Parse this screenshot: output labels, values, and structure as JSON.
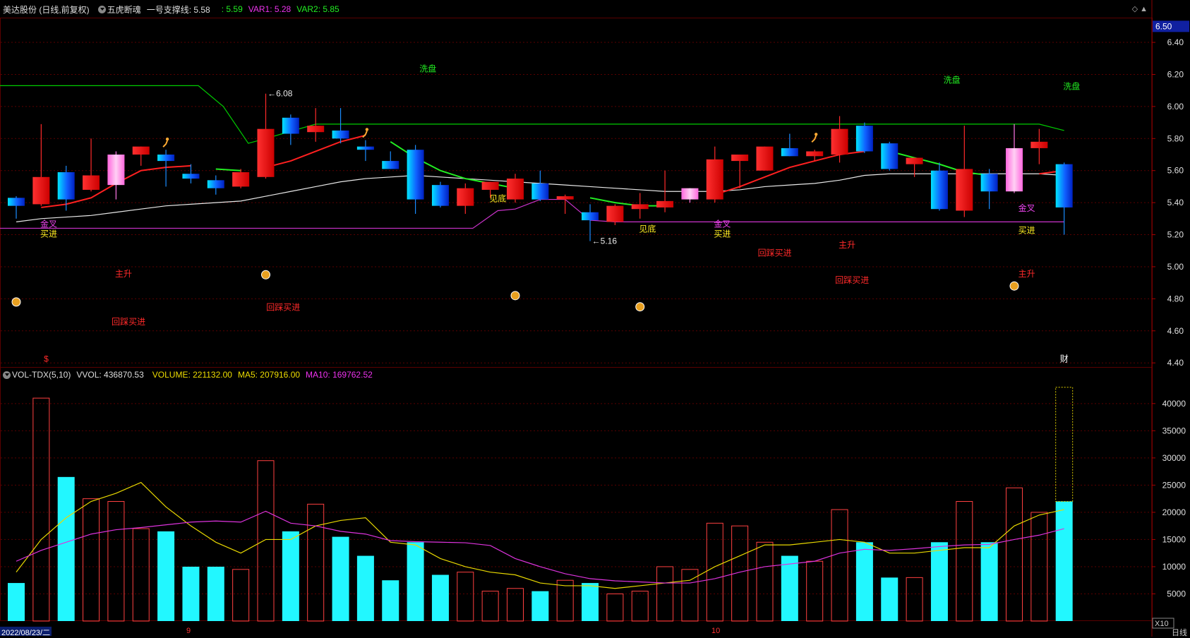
{
  "header": {
    "stock": "美达股份 (日线,前复权)",
    "indicator": "五虎断魂",
    "support_label": "一号支撑线: 5.58",
    "val1": ": 5.59",
    "var1": "VAR1: 5.28",
    "var2": "VAR2: 5.85",
    "icons": "◇ ▲"
  },
  "volume_header": {
    "indicator": "VOL-TDX(5,10)",
    "vvol": "VVOL: 436870.53",
    "volume": "VOLUME: 221132.00",
    "ma5": "MA5: 207916.00",
    "ma10": "MA10: 169762.52"
  },
  "footer": {
    "date": "2022/08/23/二",
    "month_9": "9",
    "month_10": "10",
    "period": "日线",
    "multiplier": "X10"
  },
  "colors": {
    "up": "#ff1a1a",
    "down_cyan": "#00e5ff",
    "down_blue": "#0044ff",
    "pink": "#ff77e6",
    "green": "#00dd00",
    "magenta": "#dd33dd",
    "yellow": "#ffee00",
    "grid": "#5a0000"
  },
  "chart_data": {
    "type": "candlestick",
    "price_axis": {
      "ylim": [
        4.37,
        6.55
      ],
      "ticks": [
        "4.40",
        "4.60",
        "4.80",
        "5.00",
        "5.20",
        "5.40",
        "5.60",
        "5.80",
        "6.00",
        "6.20",
        "6.40"
      ],
      "current": "6.50"
    },
    "volume_axis": {
      "ylim": [
        0,
        44000
      ],
      "ticks": [
        "5000",
        "10000",
        "15000",
        "20000",
        "25000",
        "30000",
        "35000",
        "40000"
      ]
    },
    "candles": [
      {
        "o": 5.38,
        "h": 5.44,
        "l": 5.3,
        "c": 5.43,
        "t": "down"
      },
      {
        "o": 5.39,
        "h": 5.89,
        "l": 5.38,
        "c": 5.56,
        "t": "up"
      },
      {
        "o": 5.59,
        "h": 5.63,
        "l": 5.35,
        "c": 5.42,
        "t": "down"
      },
      {
        "o": 5.48,
        "h": 5.8,
        "l": 5.47,
        "c": 5.57,
        "t": "up"
      },
      {
        "o": 5.51,
        "h": 5.72,
        "l": 5.42,
        "c": 5.7,
        "t": "pink"
      },
      {
        "o": 5.7,
        "h": 5.75,
        "l": 5.63,
        "c": 5.75,
        "t": "up"
      },
      {
        "o": 5.7,
        "h": 5.73,
        "l": 5.5,
        "c": 5.66,
        "t": "down"
      },
      {
        "o": 5.58,
        "h": 5.64,
        "l": 5.52,
        "c": 5.55,
        "t": "down"
      },
      {
        "o": 5.54,
        "h": 5.57,
        "l": 5.45,
        "c": 5.49,
        "t": "down"
      },
      {
        "o": 5.5,
        "h": 5.61,
        "l": 5.49,
        "c": 5.59,
        "t": "up"
      },
      {
        "o": 5.56,
        "h": 6.08,
        "l": 5.55,
        "c": 5.86,
        "t": "up"
      },
      {
        "o": 5.93,
        "h": 5.95,
        "l": 5.76,
        "c": 5.83,
        "t": "down"
      },
      {
        "o": 5.84,
        "h": 5.99,
        "l": 5.78,
        "c": 5.88,
        "t": "up"
      },
      {
        "o": 5.85,
        "h": 5.99,
        "l": 5.77,
        "c": 5.8,
        "t": "down"
      },
      {
        "o": 5.75,
        "h": 5.79,
        "l": 5.66,
        "c": 5.73,
        "t": "down"
      },
      {
        "o": 5.66,
        "h": 5.72,
        "l": 5.61,
        "c": 5.61,
        "t": "down"
      },
      {
        "o": 5.73,
        "h": 5.76,
        "l": 5.33,
        "c": 5.42,
        "t": "down"
      },
      {
        "o": 5.51,
        "h": 5.53,
        "l": 5.37,
        "c": 5.38,
        "t": "down"
      },
      {
        "o": 5.38,
        "h": 5.52,
        "l": 5.33,
        "c": 5.49,
        "t": "up"
      },
      {
        "o": 5.48,
        "h": 5.53,
        "l": 5.43,
        "c": 5.53,
        "t": "up"
      },
      {
        "o": 5.42,
        "h": 5.58,
        "l": 5.4,
        "c": 5.55,
        "t": "up"
      },
      {
        "o": 5.52,
        "h": 5.6,
        "l": 5.41,
        "c": 5.42,
        "t": "down"
      },
      {
        "o": 5.42,
        "h": 5.45,
        "l": 5.33,
        "c": 5.44,
        "t": "up"
      },
      {
        "o": 5.34,
        "h": 5.39,
        "l": 5.16,
        "c": 5.29,
        "t": "down"
      },
      {
        "o": 5.28,
        "h": 5.39,
        "l": 5.26,
        "c": 5.38,
        "t": "up"
      },
      {
        "o": 5.36,
        "h": 5.46,
        "l": 5.3,
        "c": 5.39,
        "t": "up"
      },
      {
        "o": 5.37,
        "h": 5.6,
        "l": 5.34,
        "c": 5.41,
        "t": "up"
      },
      {
        "o": 5.42,
        "h": 5.49,
        "l": 5.4,
        "c": 5.49,
        "t": "pink"
      },
      {
        "o": 5.42,
        "h": 5.75,
        "l": 5.4,
        "c": 5.67,
        "t": "up"
      },
      {
        "o": 5.66,
        "h": 5.7,
        "l": 5.49,
        "c": 5.7,
        "t": "up"
      },
      {
        "o": 5.6,
        "h": 5.75,
        "l": 5.6,
        "c": 5.75,
        "t": "up"
      },
      {
        "o": 5.74,
        "h": 5.83,
        "l": 5.69,
        "c": 5.69,
        "t": "down"
      },
      {
        "o": 5.69,
        "h": 5.73,
        "l": 5.66,
        "c": 5.72,
        "t": "up"
      },
      {
        "o": 5.7,
        "h": 5.94,
        "l": 5.65,
        "c": 5.86,
        "t": "up"
      },
      {
        "o": 5.88,
        "h": 5.9,
        "l": 5.71,
        "c": 5.72,
        "t": "down"
      },
      {
        "o": 5.77,
        "h": 5.78,
        "l": 5.6,
        "c": 5.61,
        "t": "down"
      },
      {
        "o": 5.64,
        "h": 5.68,
        "l": 5.56,
        "c": 5.68,
        "t": "up"
      },
      {
        "o": 5.6,
        "h": 5.65,
        "l": 5.35,
        "c": 5.36,
        "t": "down"
      },
      {
        "o": 5.35,
        "h": 5.88,
        "l": 5.31,
        "c": 5.61,
        "t": "up"
      },
      {
        "o": 5.58,
        "h": 5.61,
        "l": 5.36,
        "c": 5.47,
        "t": "down"
      },
      {
        "o": 5.47,
        "h": 5.89,
        "l": 5.46,
        "c": 5.74,
        "t": "pink"
      },
      {
        "o": 5.74,
        "h": 5.86,
        "l": 5.64,
        "c": 5.78,
        "t": "up"
      },
      {
        "o": 5.64,
        "h": 5.65,
        "l": 5.2,
        "c": 5.37,
        "t": "down"
      }
    ],
    "volumes": [
      7000,
      41000,
      26500,
      22500,
      22000,
      17000,
      16500,
      10000,
      10000,
      9500,
      29500,
      16500,
      21500,
      15500,
      12000,
      7500,
      14500,
      8500,
      9000,
      5500,
      6000,
      5500,
      7500,
      7000,
      5000,
      5500,
      10000,
      9500,
      18000,
      17500,
      14500,
      12000,
      11000,
      20500,
      14500,
      8000,
      8000,
      14500,
      22000,
      14500,
      24500,
      20000,
      22000
    ],
    "vol_hollow_max": 43000,
    "vol_ma5": [
      9000,
      15000,
      19000,
      22000,
      23500,
      25500,
      21000,
      17500,
      14500,
      12500,
      15000,
      15000,
      17500,
      18500,
      19000,
      14500,
      14000,
      11500,
      10000,
      9000,
      8500,
      7000,
      6500,
      6500,
      6000,
      6500,
      7000,
      7500,
      10000,
      12000,
      14000,
      14000,
      14500,
      15000,
      14500,
      12500,
      12500,
      13000,
      13500,
      13500,
      17500,
      19500,
      20500
    ],
    "vol_ma10": [
      11000,
      13000,
      14500,
      16000,
      16800,
      17200,
      17700,
      18200,
      18400,
      18200,
      20200,
      18000,
      17500,
      16500,
      16000,
      14800,
      14600,
      14500,
      14400,
      13900,
      11500,
      10000,
      8700,
      7800,
      7400,
      7200,
      7000,
      7000,
      7800,
      9000,
      10000,
      10500,
      11000,
      12500,
      13200,
      13000,
      13300,
      13700,
      14000,
      14100,
      15000,
      15800,
      17000
    ],
    "ma_white": [
      5.28,
      5.3,
      5.31,
      5.32,
      5.34,
      5.36,
      5.38,
      5.39,
      5.4,
      5.41,
      5.44,
      5.47,
      5.5,
      5.53,
      5.55,
      5.56,
      5.57,
      5.56,
      5.55,
      5.54,
      5.53,
      5.52,
      5.51,
      5.5,
      5.49,
      5.48,
      5.47,
      5.47,
      5.47,
      5.48,
      5.5,
      5.51,
      5.52,
      5.54,
      5.57,
      5.58,
      5.58,
      5.58,
      5.58,
      5.58,
      5.58,
      5.58,
      5.57
    ],
    "ma_red_segments": [
      {
        "start": 1,
        "values": [
          5.37,
          5.39,
          5.43,
          5.52,
          5.6,
          5.62,
          5.63
        ]
      },
      {
        "start": 10,
        "values": [
          5.62,
          5.66,
          5.72,
          5.78,
          5.82
        ]
      },
      {
        "start": 28,
        "values": [
          5.45,
          5.5,
          5.56,
          5.62,
          5.66,
          5.7,
          5.72
        ]
      },
      {
        "start": 41,
        "values": [
          5.58,
          5.6
        ]
      }
    ],
    "ma_green_segments": [
      {
        "start": 8,
        "values": [
          5.61,
          5.6
        ]
      },
      {
        "start": 15,
        "values": [
          5.78,
          5.68,
          5.6,
          5.55,
          5.52,
          5.49
        ]
      },
      {
        "start": 23,
        "values": [
          5.43,
          5.4,
          5.38,
          5.38
        ]
      },
      {
        "start": 35,
        "values": [
          5.72,
          5.68,
          5.64,
          5.59,
          5.57
        ]
      }
    ],
    "green_line": [
      {
        "i": -0.7,
        "p": 6.13
      },
      {
        "i": 7.3,
        "p": 6.13
      },
      {
        "i": 8.3,
        "p": 6.0
      },
      {
        "i": 9.3,
        "p": 5.77
      },
      {
        "i": 10,
        "p": 5.8
      },
      {
        "i": 12,
        "p": 5.89
      },
      {
        "i": 41,
        "p": 5.89
      },
      {
        "i": 42,
        "p": 5.85
      }
    ],
    "magenta_line": [
      {
        "i": -0.7,
        "p": 5.24
      },
      {
        "i": 18.3,
        "p": 5.24
      },
      {
        "i": 19.3,
        "p": 5.35
      },
      {
        "i": 20,
        "p": 5.36
      },
      {
        "i": 21,
        "p": 5.42
      },
      {
        "i": 22,
        "p": 5.42
      },
      {
        "i": 23,
        "p": 5.29
      },
      {
        "i": 24,
        "p": 5.28
      },
      {
        "i": 42,
        "p": 5.28
      }
    ],
    "annotations": [
      {
        "text": "金叉",
        "i": 1.3,
        "p": 5.27,
        "c": "magenta"
      },
      {
        "text": "买进",
        "i": 1.3,
        "p": 5.21,
        "c": "yellow"
      },
      {
        "text": "主升",
        "i": 4.3,
        "p": 4.96,
        "c": "red"
      },
      {
        "text": "回踩买进",
        "i": 4.5,
        "p": 4.66,
        "c": "red"
      },
      {
        "text": "回踩买进",
        "i": 10.7,
        "p": 4.75,
        "c": "red"
      },
      {
        "text": "洗盘",
        "i": 16.5,
        "p": 6.24,
        "c": "green"
      },
      {
        "text": "见底",
        "i": 19.3,
        "p": 5.43,
        "c": "yellow"
      },
      {
        "text": "见底",
        "i": 25.3,
        "p": 5.24,
        "c": "yellow"
      },
      {
        "text": "金叉",
        "i": 28.3,
        "p": 5.27,
        "c": "magenta"
      },
      {
        "text": "买进",
        "i": 28.3,
        "p": 5.21,
        "c": "yellow"
      },
      {
        "text": "回踩买进",
        "i": 30.4,
        "p": 5.09,
        "c": "red"
      },
      {
        "text": "主升",
        "i": 33.3,
        "p": 5.14,
        "c": "red"
      },
      {
        "text": "回踩买进",
        "i": 33.5,
        "p": 4.92,
        "c": "red"
      },
      {
        "text": "洗盘",
        "i": 37.5,
        "p": 6.17,
        "c": "green"
      },
      {
        "text": "金叉",
        "i": 40.5,
        "p": 5.37,
        "c": "magenta"
      },
      {
        "text": "买进",
        "i": 40.5,
        "p": 5.23,
        "c": "yellow"
      },
      {
        "text": "主升",
        "i": 40.5,
        "p": 4.96,
        "c": "red"
      },
      {
        "text": "洗盘",
        "i": 42.3,
        "p": 6.13,
        "c": "green"
      },
      {
        "text": "财",
        "i": 42,
        "p": 4.43,
        "c": "white"
      },
      {
        "text": "$",
        "i": 1.2,
        "p": 4.43,
        "c": "red"
      }
    ],
    "money_bags": [
      {
        "i": 0,
        "p": 4.78
      },
      {
        "i": 10,
        "p": 4.95
      },
      {
        "i": 20,
        "p": 4.82
      },
      {
        "i": 25,
        "p": 4.75
      },
      {
        "i": 40,
        "p": 4.88
      }
    ],
    "runners": [
      {
        "i": 6,
        "p": 5.77
      },
      {
        "i": 14,
        "p": 5.83
      },
      {
        "i": 32,
        "p": 5.8
      }
    ],
    "peak_marks": [
      {
        "text": "6.08",
        "i": 10.3,
        "p": 6.08
      },
      {
        "text": "5.16",
        "i": 23.3,
        "p": 5.16
      }
    ]
  }
}
